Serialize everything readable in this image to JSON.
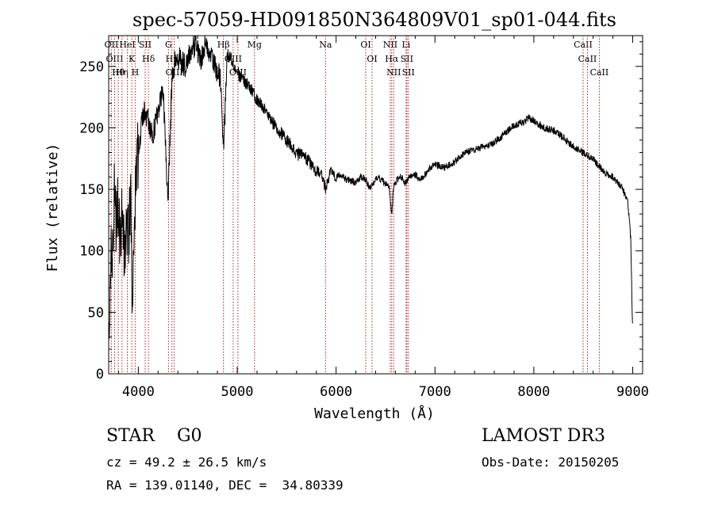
{
  "chart_data": {
    "type": "line",
    "title": "spec-57059-HD091850N364809V01_sp01-044.fits",
    "xlabel": "Wavelength (Å)",
    "ylabel": "Flux (relative)",
    "xlim": [
      3700,
      9100
    ],
    "ylim": [
      0,
      275
    ],
    "xticks": [
      4000,
      5000,
      6000,
      7000,
      8000,
      9000
    ],
    "yticks": [
      0,
      50,
      100,
      150,
      200,
      250
    ],
    "grid": false,
    "series": [
      {
        "x": [
          3700,
          3720,
          3740,
          3760,
          3780,
          3800,
          3820,
          3840,
          3860,
          3880,
          3900,
          3920,
          3940,
          3960,
          3980,
          4000,
          4030,
          4060,
          4100,
          4150,
          4200,
          4250,
          4300,
          4340,
          4380,
          4430,
          4480,
          4530,
          4580,
          4630,
          4680,
          4730,
          4780,
          4830,
          4860,
          4900,
          4950,
          5000,
          5050,
          5100,
          5150,
          5200,
          5250,
          5300,
          5350,
          5400,
          5450,
          5500,
          5550,
          5600,
          5650,
          5700,
          5750,
          5800,
          5850,
          5893,
          5950,
          6000,
          6050,
          6100,
          6150,
          6200,
          6250,
          6300,
          6350,
          6400,
          6450,
          6500,
          6540,
          6563,
          6580,
          6620,
          6660,
          6700,
          6750,
          6800,
          6850,
          6900,
          6950,
          7000,
          7100,
          7200,
          7300,
          7400,
          7500,
          7600,
          7700,
          7800,
          7900,
          7950,
          8000,
          8100,
          8200,
          8300,
          8400,
          8500,
          8600,
          8700,
          8800,
          8900,
          8950,
          8980,
          9000
        ],
        "y": [
          40,
          85,
          110,
          150,
          120,
          140,
          100,
          135,
          90,
          125,
          110,
          150,
          60,
          140,
          155,
          185,
          200,
          215,
          205,
          195,
          215,
          230,
          140,
          240,
          260,
          255,
          250,
          262,
          268,
          255,
          270,
          258,
          250,
          240,
          180,
          260,
          255,
          245,
          240,
          235,
          230,
          222,
          218,
          212,
          205,
          200,
          195,
          190,
          185,
          178,
          180,
          175,
          170,
          165,
          162,
          150,
          165,
          160,
          162,
          158,
          157,
          155,
          160,
          158,
          150,
          160,
          158,
          155,
          150,
          128,
          152,
          158,
          160,
          155,
          162,
          162,
          158,
          162,
          168,
          170,
          168,
          172,
          180,
          182,
          185,
          188,
          195,
          202,
          205,
          208,
          206,
          200,
          198,
          192,
          185,
          180,
          175,
          165,
          160,
          150,
          140,
          110,
          30
        ]
      }
    ],
    "lines": [
      {
        "label": "Hθ",
        "x": 3797
      },
      {
        "label": "OII",
        "x": 3727
      },
      {
        "label": "OIII",
        "x": 3760
      },
      {
        "label": "K",
        "x": 3934
      },
      {
        "label": "HeI",
        "x": 3889
      },
      {
        "label": "Hη",
        "x": 3835
      },
      {
        "label": "SII",
        "x": 4069
      },
      {
        "label": "H",
        "x": 3968
      },
      {
        "label": "Hδ",
        "x": 4102
      },
      {
        "label": "OIII",
        "x": 4363
      },
      {
        "label": "Hγ",
        "x": 4340
      },
      {
        "label": "G",
        "x": 4305
      },
      {
        "label": "OIII",
        "x": 5007
      },
      {
        "label": "OIII",
        "x": 4959
      },
      {
        "label": "Hβ",
        "x": 4861
      },
      {
        "label": "Mg",
        "x": 5175
      },
      {
        "label": "Na",
        "x": 5893
      },
      {
        "label": "OI",
        "x": 6300
      },
      {
        "label": "OI",
        "x": 6364
      },
      {
        "label": "Hα",
        "x": 6563
      },
      {
        "label": "NII",
        "x": 6548
      },
      {
        "label": "NII",
        "x": 6583
      },
      {
        "label": "SII",
        "x": 6716
      },
      {
        "label": "Li",
        "x": 6708
      },
      {
        "label": "SII",
        "x": 6731
      },
      {
        "label": "CaII",
        "x": 8542
      },
      {
        "label": "CaII",
        "x": 8498
      },
      {
        "label": "CaII",
        "x": 8662
      }
    ]
  },
  "info": {
    "object": "STAR    G0",
    "survey": "LAMOST DR3",
    "cz": "cz = 49.2 ± 26.5 km/s",
    "obs_date": "Obs-Date: 20150205",
    "radec": "RA = 139.01140, DEC =  34.80339"
  }
}
